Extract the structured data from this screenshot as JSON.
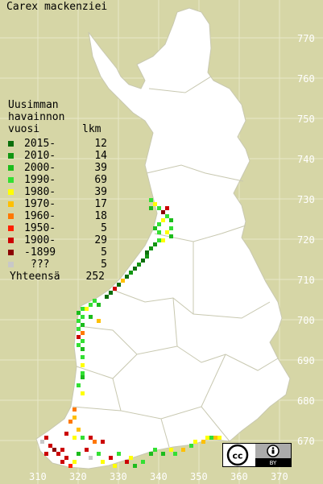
{
  "title": "Carex mackenziei",
  "legend": {
    "heading": [
      "Uusimman",
      "havainnon"
    ],
    "col_year": "vuosi",
    "col_count": "lkm",
    "rows": [
      {
        "label": "2015-",
        "count": "12",
        "color": "#0b6e0b"
      },
      {
        "label": "2010-",
        "count": "14",
        "color": "#129612"
      },
      {
        "label": "2000-",
        "count": "39",
        "color": "#1cbc1c"
      },
      {
        "label": "1990-",
        "count": "69",
        "color": "#33e033"
      },
      {
        "label": "1980-",
        "count": "39",
        "color": "#ffff00"
      },
      {
        "label": "1970-",
        "count": "17",
        "color": "#ffc000"
      },
      {
        "label": "1960-",
        "count": "18",
        "color": "#ff7800"
      },
      {
        "label": "1950-",
        "count": "5",
        "color": "#ff2000"
      },
      {
        "label": "1900-",
        "count": "29",
        "color": "#cc0000"
      },
      {
        "label": "-1899",
        "count": "5",
        "color": "#8b0000"
      },
      {
        "label": "???",
        "count": "5",
        "color": "#c8c8c8"
      }
    ],
    "total_label": "Yhteensä",
    "total_count": "252"
  },
  "y_ticks": [
    "770",
    "760",
    "750",
    "740",
    "730",
    "720",
    "710",
    "700",
    "690",
    "680",
    "670"
  ],
  "x_ticks": [
    "310",
    "320",
    "330",
    "340",
    "350",
    "360",
    "370"
  ],
  "license_icon": "cc-by-icon",
  "license_text": "BY"
}
